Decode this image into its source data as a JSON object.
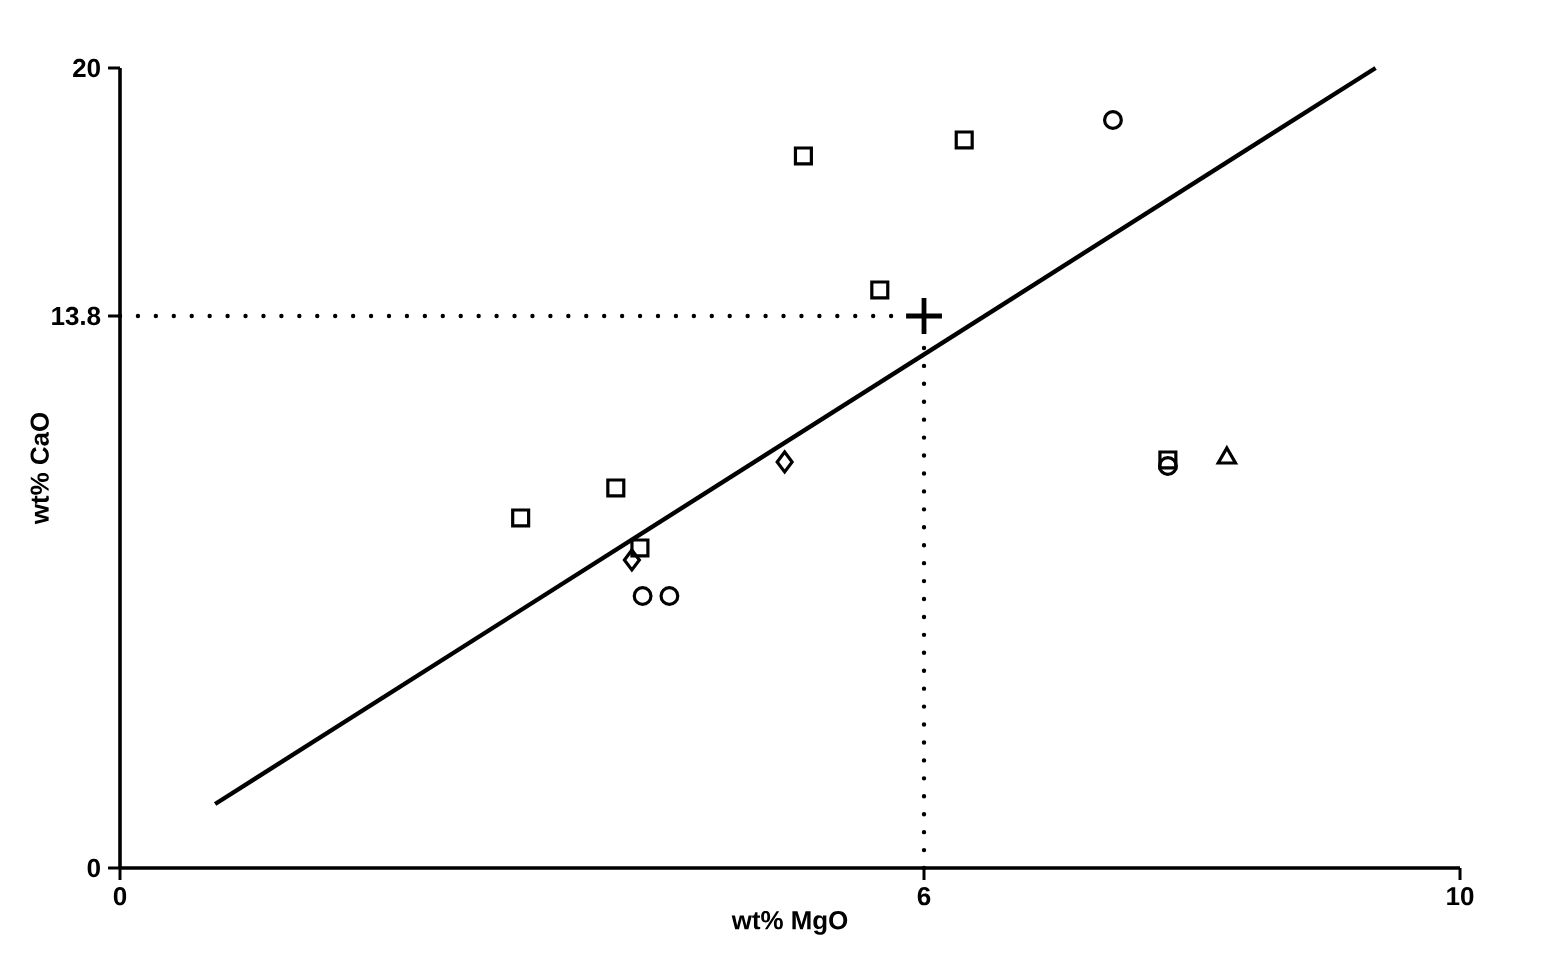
{
  "chart_data": {
    "type": "scatter",
    "xlabel": "wt% MgO",
    "ylabel": "wt% CaO",
    "xlim": [
      0,
      10
    ],
    "ylim": [
      0,
      20
    ],
    "xticks": [
      0,
      6,
      10
    ],
    "yticks": [
      0,
      13.8,
      20
    ],
    "series": [
      {
        "marker": "square",
        "color": "#000000",
        "x": [
          2.99,
          3.7,
          3.88,
          5.1,
          6.3,
          5.67,
          7.82
        ],
        "values": [
          8.75,
          9.5,
          8.0,
          17.8,
          18.2,
          14.45,
          10.2
        ]
      },
      {
        "marker": "circle",
        "color": "#000000",
        "x": [
          7.41,
          3.9,
          4.1,
          7.82
        ],
        "values": [
          18.7,
          6.8,
          6.8,
          10.05
        ]
      },
      {
        "marker": "diamond",
        "color": "#000000",
        "x": [
          4.96,
          3.82
        ],
        "values": [
          10.15,
          7.7
        ]
      },
      {
        "marker": "triangle",
        "color": "#000000",
        "x": [
          8.26
        ],
        "values": [
          10.25
        ]
      },
      {
        "type": "line",
        "line_style": "solid",
        "marker": "none",
        "color": "#000000",
        "x": [
          0.71,
          9.37
        ],
        "values": [
          1.6,
          20
        ]
      },
      {
        "type": "line",
        "line_style": "dotted",
        "marker": "none",
        "color": "#000000",
        "x": [
          0,
          6
        ],
        "values": [
          13.8,
          13.8
        ]
      },
      {
        "type": "line",
        "line_style": "dotted",
        "marker": "none",
        "color": "#000000",
        "x": [
          6,
          6
        ],
        "values": [
          0,
          13.8
        ]
      },
      {
        "marker": "cross",
        "color": "#000000",
        "x": [
          6
        ],
        "values": [
          13.8
        ]
      }
    ]
  }
}
